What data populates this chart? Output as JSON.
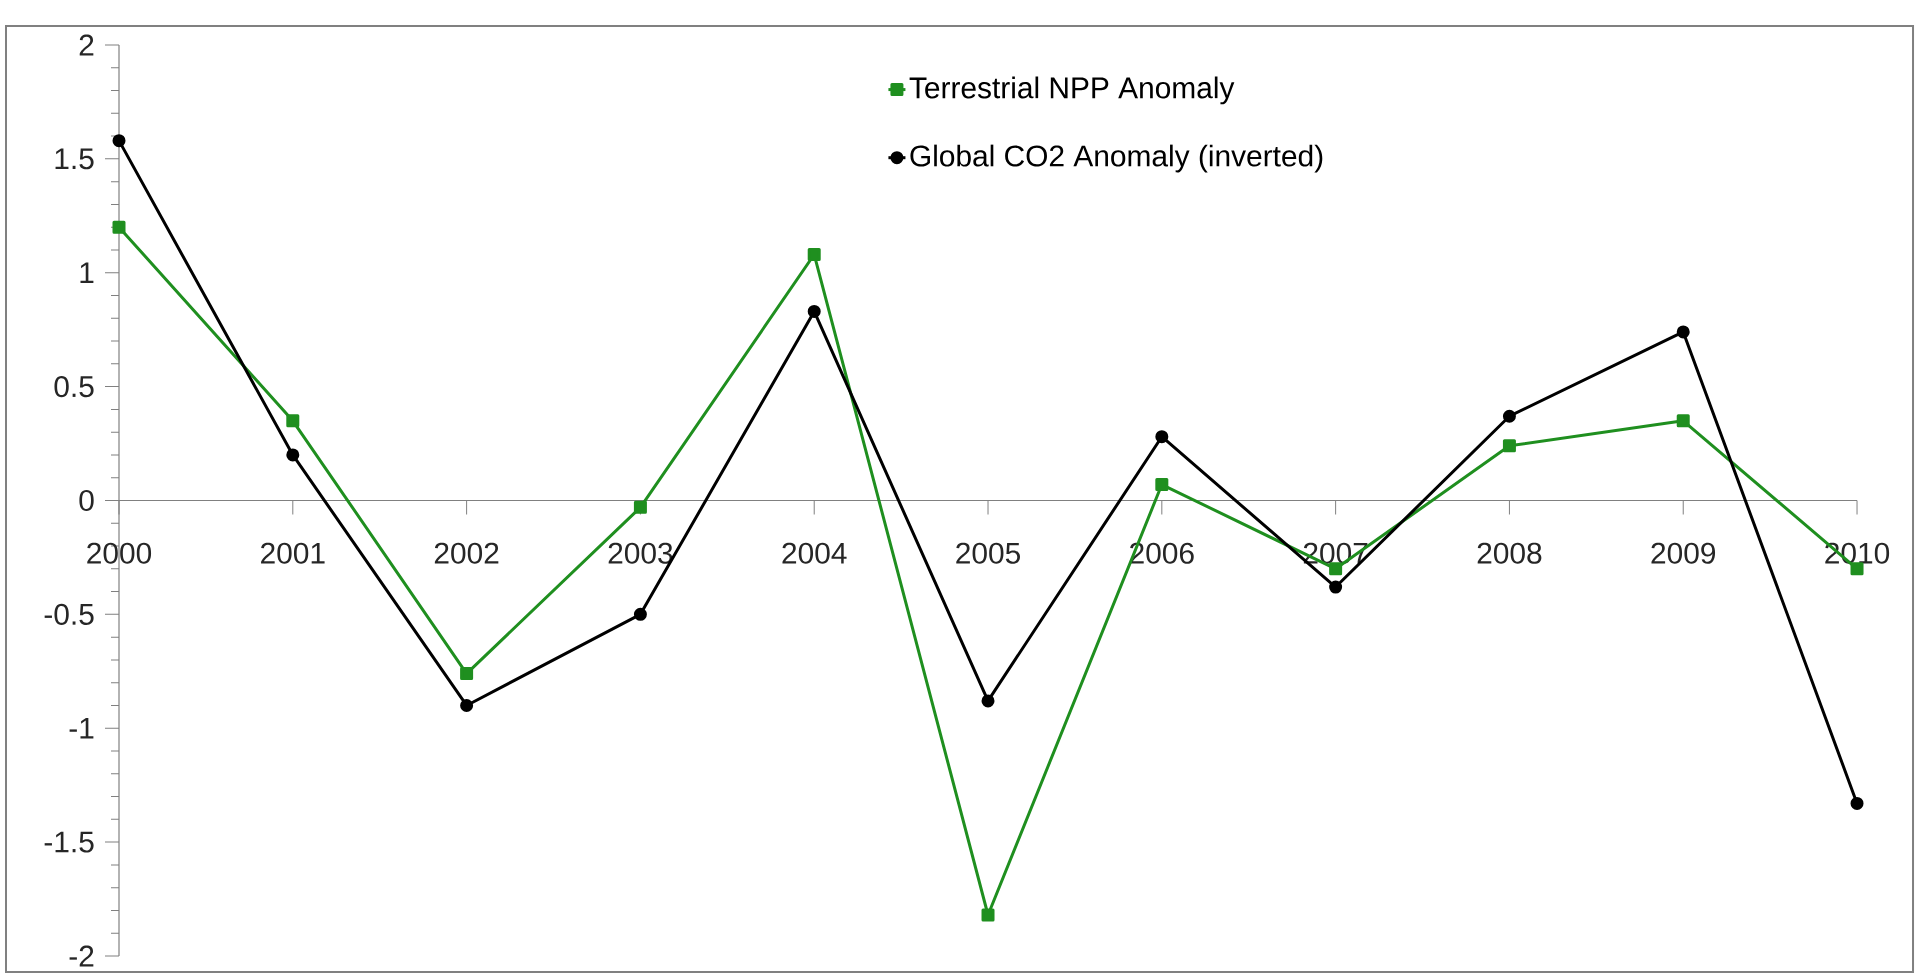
{
  "chart_data": {
    "type": "line",
    "categories": [
      "2000",
      "2001",
      "2002",
      "2003",
      "2004",
      "2005",
      "2006",
      "2007",
      "2008",
      "2009",
      "2010"
    ],
    "series": [
      {
        "name": "Terrestrial NPP Anomaly",
        "color": "#1f8f1f",
        "marker": "square",
        "values": [
          1.2,
          0.35,
          -0.76,
          -0.03,
          1.08,
          -1.82,
          0.07,
          -0.3,
          0.24,
          0.35,
          -0.3
        ]
      },
      {
        "name": "Global CO2 Anomaly (inverted)",
        "color": "#000000",
        "marker": "circle",
        "values": [
          1.58,
          0.2,
          -0.9,
          -0.5,
          0.83,
          -0.88,
          0.28,
          -0.38,
          0.37,
          0.74,
          -1.33
        ]
      }
    ],
    "ylim": [
      -2,
      2
    ],
    "yticks": [
      -2,
      -1.5,
      -1,
      -0.5,
      0,
      0.5,
      1,
      1.5,
      2
    ],
    "legend": "top",
    "grid": false
  }
}
